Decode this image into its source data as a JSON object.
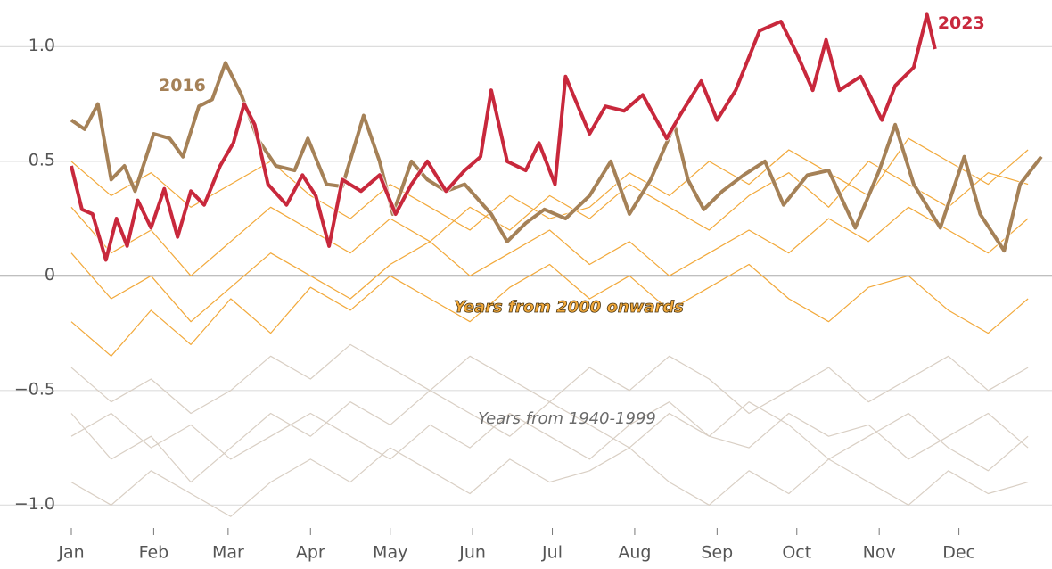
{
  "chart_data": {
    "type": "line",
    "xlim": [
      0,
      365
    ],
    "ylim": [
      -1.1,
      1.2
    ],
    "xticks": [
      {
        "value": 0,
        "label": "Jan"
      },
      {
        "value": 31,
        "label": "Feb"
      },
      {
        "value": 59,
        "label": "Mar"
      },
      {
        "value": 90,
        "label": "Apr"
      },
      {
        "value": 120,
        "label": "May"
      },
      {
        "value": 151,
        "label": "Jun"
      },
      {
        "value": 181,
        "label": "Jul"
      },
      {
        "value": 212,
        "label": "Aug"
      },
      {
        "value": 243,
        "label": "Sep"
      },
      {
        "value": 273,
        "label": "Oct"
      },
      {
        "value": 304,
        "label": "Nov"
      },
      {
        "value": 334,
        "label": "Dec"
      }
    ],
    "yticks": [
      {
        "value": 1,
        "label": "1.0"
      },
      0.5,
      0,
      {
        "value": -0.5,
        "label": "−0.5"
      },
      {
        "value": -1,
        "label": "−1.0"
      }
    ],
    "grid": true,
    "groups": [
      {
        "name": "Years from 1940-1999",
        "color": "#d9cfc4",
        "x": [
          0,
          15,
          30,
          45,
          60,
          75,
          90,
          105,
          120,
          135,
          150,
          165,
          180,
          195,
          210,
          225,
          240,
          255,
          270,
          285,
          300,
          315,
          330,
          345,
          360
        ],
        "lines": [
          [
            -0.6,
            -0.8,
            -0.7,
            -0.9,
            -0.75,
            -0.6,
            -0.7,
            -0.55,
            -0.65,
            -0.5,
            -0.6,
            -0.7,
            -0.55,
            -0.65,
            -0.75,
            -0.6,
            -0.7,
            -0.55,
            -0.65,
            -0.8,
            -0.7,
            -0.6,
            -0.75,
            -0.85,
            -0.7
          ],
          [
            -0.4,
            -0.55,
            -0.45,
            -0.6,
            -0.5,
            -0.35,
            -0.45,
            -0.3,
            -0.4,
            -0.5,
            -0.35,
            -0.45,
            -0.55,
            -0.4,
            -0.5,
            -0.35,
            -0.45,
            -0.6,
            -0.5,
            -0.4,
            -0.55,
            -0.45,
            -0.35,
            -0.5,
            -0.4
          ],
          [
            -0.9,
            -1.0,
            -0.85,
            -0.95,
            -1.05,
            -0.9,
            -0.8,
            -0.9,
            -0.75,
            -0.85,
            -0.95,
            -0.8,
            -0.9,
            -0.85,
            -0.75,
            -0.9,
            -1.0,
            -0.85,
            -0.95,
            -0.8,
            -0.9,
            -1.0,
            -0.85,
            -0.95,
            -0.9
          ],
          [
            -0.7,
            -0.6,
            -0.75,
            -0.65,
            -0.8,
            -0.7,
            -0.6,
            -0.7,
            -0.8,
            -0.65,
            -0.75,
            -0.6,
            -0.7,
            -0.8,
            -0.65,
            -0.55,
            -0.7,
            -0.75,
            -0.6,
            -0.7,
            -0.65,
            -0.8,
            -0.7,
            -0.6,
            -0.75
          ]
        ]
      },
      {
        "name": "Years from 2000 onwards",
        "color": "#f2a93b",
        "x": [
          0,
          15,
          30,
          45,
          60,
          75,
          90,
          105,
          120,
          135,
          150,
          165,
          180,
          195,
          210,
          225,
          240,
          255,
          270,
          285,
          300,
          315,
          330,
          345,
          360
        ],
        "lines": [
          [
            0.3,
            0.1,
            0.2,
            0.0,
            0.15,
            0.3,
            0.2,
            0.1,
            0.25,
            0.15,
            0.3,
            0.2,
            0.35,
            0.25,
            0.4,
            0.3,
            0.2,
            0.35,
            0.45,
            0.3,
            0.5,
            0.4,
            0.3,
            0.45,
            0.4
          ],
          [
            0.1,
            -0.1,
            0.0,
            -0.2,
            -0.05,
            0.1,
            0.0,
            -0.1,
            0.05,
            0.15,
            0.0,
            0.1,
            0.2,
            0.05,
            0.15,
            0.0,
            0.1,
            0.2,
            0.1,
            0.25,
            0.15,
            0.3,
            0.2,
            0.1,
            0.25
          ],
          [
            -0.2,
            -0.35,
            -0.15,
            -0.3,
            -0.1,
            -0.25,
            -0.05,
            -0.15,
            0.0,
            -0.1,
            -0.2,
            -0.05,
            0.05,
            -0.1,
            0.0,
            -0.15,
            -0.05,
            0.05,
            -0.1,
            -0.2,
            -0.05,
            0.0,
            -0.15,
            -0.25,
            -0.1
          ],
          [
            0.5,
            0.35,
            0.45,
            0.3,
            0.4,
            0.5,
            0.35,
            0.25,
            0.4,
            0.3,
            0.2,
            0.35,
            0.25,
            0.3,
            0.45,
            0.35,
            0.5,
            0.4,
            0.55,
            0.45,
            0.35,
            0.6,
            0.5,
            0.4,
            0.55
          ]
        ]
      }
    ],
    "series": [
      {
        "name": "2016",
        "color": "#a58157",
        "x": [
          0,
          5,
          10,
          15,
          20,
          24,
          31,
          37,
          42,
          48,
          53,
          58,
          64,
          70,
          77,
          84,
          89,
          96,
          102,
          110,
          116,
          121,
          128,
          134,
          141,
          148,
          158,
          164,
          171,
          178,
          186,
          195,
          203,
          210,
          218,
          227,
          232,
          238,
          245,
          253,
          261,
          268,
          277,
          285,
          295,
          304,
          310,
          317,
          327,
          336,
          342,
          351,
          357,
          365
        ],
        "values": [
          0.68,
          0.64,
          0.75,
          0.42,
          0.48,
          0.37,
          0.62,
          0.6,
          0.52,
          0.74,
          0.77,
          0.93,
          0.79,
          0.6,
          0.48,
          0.46,
          0.6,
          0.4,
          0.39,
          0.7,
          0.5,
          0.27,
          0.5,
          0.42,
          0.37,
          0.4,
          0.27,
          0.15,
          0.23,
          0.29,
          0.25,
          0.35,
          0.5,
          0.27,
          0.42,
          0.66,
          0.42,
          0.29,
          0.37,
          0.44,
          0.5,
          0.31,
          0.44,
          0.46,
          0.21,
          0.46,
          0.66,
          0.4,
          0.21,
          0.52,
          0.27,
          0.11,
          0.4,
          0.52
        ]
      },
      {
        "name": "2023",
        "color": "#c8283c",
        "x": [
          0,
          4,
          8,
          13,
          17,
          21,
          25,
          30,
          35,
          40,
          45,
          50,
          56,
          61,
          65,
          69,
          74,
          81,
          87,
          92,
          97,
          102,
          109,
          116,
          122,
          128,
          134,
          141,
          148,
          154,
          158,
          164,
          171,
          176,
          182,
          186,
          195,
          201,
          208,
          215,
          224,
          229,
          237,
          243,
          250,
          259,
          267,
          273,
          279,
          284,
          289,
          297,
          305,
          310,
          317,
          322,
          325
        ],
        "values": [
          0.48,
          0.29,
          0.27,
          0.07,
          0.25,
          0.13,
          0.33,
          0.21,
          0.38,
          0.17,
          0.37,
          0.31,
          0.48,
          0.58,
          0.75,
          0.66,
          0.4,
          0.31,
          0.44,
          0.35,
          0.13,
          0.42,
          0.37,
          0.44,
          0.27,
          0.4,
          0.5,
          0.37,
          0.46,
          0.52,
          0.81,
          0.5,
          0.46,
          0.58,
          0.4,
          0.87,
          0.62,
          0.74,
          0.72,
          0.79,
          0.6,
          0.7,
          0.85,
          0.68,
          0.81,
          1.07,
          1.11,
          0.97,
          0.81,
          1.03,
          0.81,
          0.87,
          0.68,
          0.83,
          0.91,
          1.14,
          0.99
        ]
      }
    ]
  }
}
